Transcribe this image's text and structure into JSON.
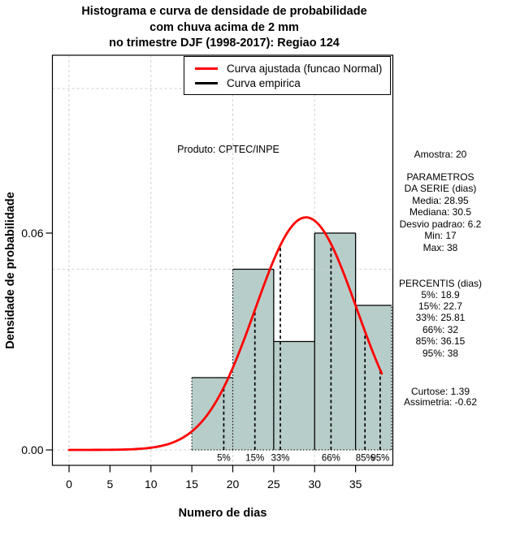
{
  "title": {
    "line1": "Histograma e curva de densidade de probabilidade",
    "line2": "com chuva acima de 2 mm",
    "line3": "no trimestre DJF (1998-2017): Regiao 124"
  },
  "legend": {
    "fitted_label": "Curva ajustada (funcao Normal)",
    "empirical_label": "Curva empirica",
    "fitted_color": "#ff0000",
    "empirical_color": "#000000"
  },
  "annotation": {
    "produto": "Produto: CPTEC/INPE"
  },
  "axes": {
    "x_label": "Numero de dias",
    "y_label": "Densidade de probabilidade",
    "x_ticks": [
      0,
      5,
      10,
      15,
      20,
      25,
      30,
      35
    ],
    "y_ticks": [
      {
        "v": 0,
        "label": "0.00"
      },
      {
        "v": 0.06,
        "label": "0.06"
      }
    ],
    "x_grid": [
      0,
      10,
      20,
      30
    ],
    "y_grid": [
      0,
      0.05,
      0.1
    ]
  },
  "chart_data": {
    "type": "bar",
    "subtype": "histogram_with_density_curve",
    "title": "Histograma e curva de densidade de probabilidade com chuva acima de 2 mm no trimestre DJF (1998-2017): Regiao 124",
    "xlabel": "Numero de dias",
    "ylabel": "Densidade de probabilidade",
    "xlim": [
      -2,
      39.5
    ],
    "ylim": [
      -0.0043,
      0.1092
    ],
    "grid": true,
    "bar_fill": "#b7cdc9",
    "bins": [
      {
        "from": 15,
        "to": 20,
        "density": 0.02
      },
      {
        "from": 20,
        "to": 25,
        "density": 0.05
      },
      {
        "from": 25,
        "to": 30,
        "density": 0.03
      },
      {
        "from": 30,
        "to": 35,
        "density": 0.06
      },
      {
        "from": 35,
        "to": 39.4,
        "density": 0.04
      }
    ],
    "fitted_normal": {
      "mean": 28.95,
      "sd": 6.2,
      "x_from": 0,
      "x_to": 38.2,
      "color": "#ff0000"
    },
    "percentile_markers": [
      {
        "label": "5%",
        "x": 18.9
      },
      {
        "label": "15%",
        "x": 22.7
      },
      {
        "label": "33%",
        "x": 25.81
      },
      {
        "label": "66%",
        "x": 32
      },
      {
        "label": "85%",
        "x": 36.15
      },
      {
        "label": "95%",
        "x": 38
      }
    ]
  },
  "stats_panel": {
    "amostra": "Amostra: 20",
    "parametros_header1": "PARAMETROS",
    "parametros_header2": "DA SERIE (dias)",
    "parametros": [
      "Media: 28.95",
      "Mediana: 30.5",
      "Desvio padrao: 6.2",
      "Min: 17",
      "Max: 38"
    ],
    "percentis_header": "PERCENTIS (dias)",
    "percentis": [
      "5%: 18.9",
      "15%: 22.7",
      "33%: 25.81",
      "66%: 32",
      "85%: 36.15",
      "95%: 38"
    ],
    "curtose": "Curtose: 1.39",
    "assimetria": "Assimetria: -0.62"
  }
}
